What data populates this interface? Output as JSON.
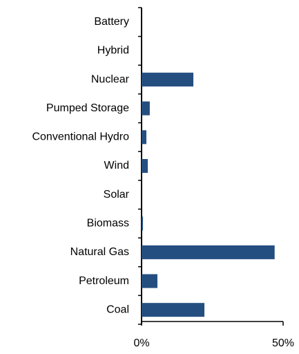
{
  "chart_data": {
    "type": "barh",
    "categories": [
      "Battery",
      "Hybrid",
      "Nuclear",
      "Pumped Storage",
      "Conventional Hydro",
      "Wind",
      "Solar",
      "Biomass",
      "Natural Gas",
      "Petroleum",
      "Coal"
    ],
    "values": [
      0,
      0,
      18.3,
      2.9,
      1.7,
      2.2,
      0,
      0.5,
      47,
      5.6,
      22.2
    ],
    "color": "#254e80",
    "xlim": [
      0,
      50
    ],
    "xticks": [
      {
        "value": 0,
        "label": "0%"
      },
      {
        "value": 50,
        "label": "50%"
      }
    ]
  }
}
